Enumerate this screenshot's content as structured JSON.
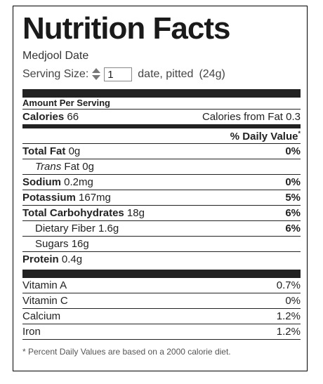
{
  "title": "Nutrition Facts",
  "food_name": "Medjool Date",
  "serving": {
    "label": "Serving Size:",
    "quantity": "1",
    "unit": "date, pitted",
    "weight": "(24g)"
  },
  "amount_per_serving": "Amount Per Serving",
  "calories": {
    "label": "Calories",
    "value": "66",
    "from_fat_label": "Calories from Fat",
    "from_fat_value": "0.3"
  },
  "dv_header": "% Daily Value",
  "dv_asterisk": "*",
  "nutrients": {
    "total_fat": {
      "label": "Total Fat",
      "amount": "0g",
      "dv": "0%"
    },
    "trans_fat": {
      "label_italic": "Trans",
      "label_rest": " Fat",
      "amount": "0g"
    },
    "sodium": {
      "label": "Sodium",
      "amount": "0.2mg",
      "dv": "0%"
    },
    "potassium": {
      "label": "Potassium",
      "amount": "167mg",
      "dv": "5%"
    },
    "total_carbs": {
      "label": "Total Carbohydrates",
      "amount": "18g",
      "dv": "6%"
    },
    "dietary_fiber": {
      "label": "Dietary Fiber",
      "amount": "1.6g",
      "dv": "6%"
    },
    "sugars": {
      "label": "Sugars",
      "amount": "16g"
    },
    "protein": {
      "label": "Protein",
      "amount": "0.4g"
    }
  },
  "vitamins": [
    {
      "label": "Vitamin A",
      "dv": "0.7%"
    },
    {
      "label": "Vitamin C",
      "dv": "0%"
    },
    {
      "label": "Calcium",
      "dv": "1.2%"
    },
    {
      "label": "Iron",
      "dv": "1.2%"
    }
  ],
  "footnote": "* Percent Daily Values are based on a 2000 calorie diet."
}
